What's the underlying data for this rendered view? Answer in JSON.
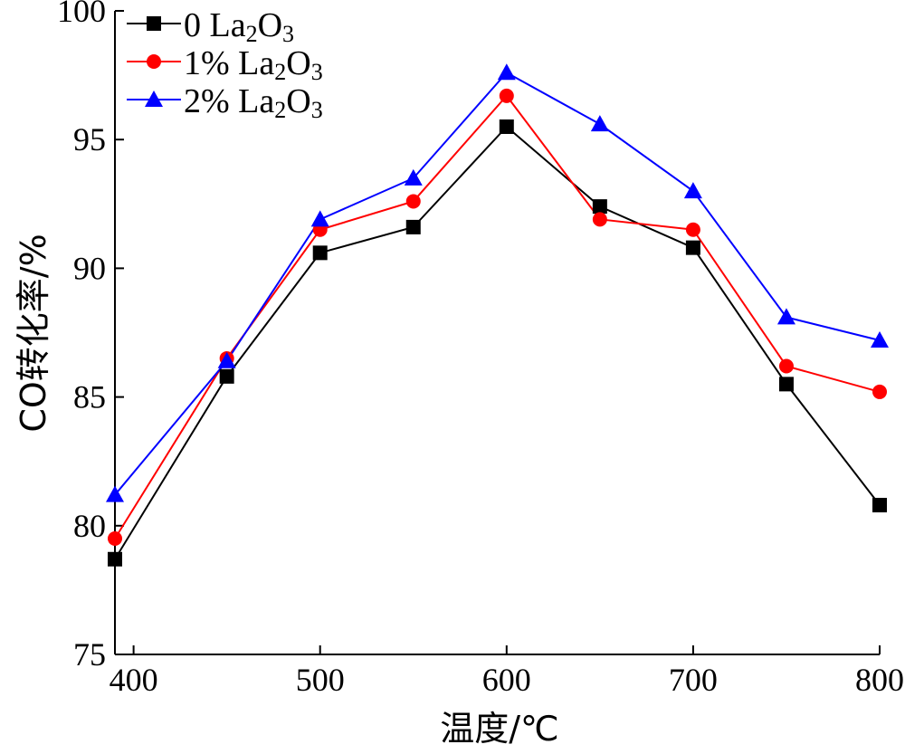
{
  "chart_data": {
    "type": "line",
    "title": "",
    "xlabel": "温度/℃",
    "ylabel": "CO转化率/%",
    "xlim": [
      390,
      800
    ],
    "ylim": [
      75,
      100
    ],
    "xticks": [
      400,
      500,
      600,
      700,
      800
    ],
    "yticks": [
      75,
      80,
      85,
      90,
      95,
      100
    ],
    "grid": false,
    "legend_position": "top-left",
    "x": [
      390,
      450,
      500,
      550,
      600,
      650,
      700,
      750,
      800
    ],
    "series": [
      {
        "name": "0 La2O3",
        "legend": {
          "pre": "0 La",
          "sub1": "2",
          "mid": "O",
          "sub2": "3"
        },
        "color": "#000000",
        "marker": "square",
        "values": [
          78.7,
          85.8,
          90.6,
          91.6,
          95.5,
          92.4,
          90.8,
          85.5,
          80.8
        ]
      },
      {
        "name": "1% La2O3",
        "legend": {
          "pre": "1% La",
          "sub1": "2",
          "mid": "O",
          "sub2": "3"
        },
        "color": "#ff0000",
        "marker": "circle",
        "values": [
          79.5,
          86.5,
          91.5,
          92.6,
          96.7,
          91.9,
          91.5,
          86.2,
          85.2
        ]
      },
      {
        "name": "2% La2O3",
        "legend": {
          "pre": "2% La",
          "sub1": "2",
          "mid": "O",
          "sub2": "3"
        },
        "color": "#0000ff",
        "marker": "triangle",
        "values": [
          81.2,
          86.4,
          91.9,
          93.5,
          97.6,
          95.6,
          93.0,
          88.1,
          87.2
        ]
      }
    ]
  }
}
